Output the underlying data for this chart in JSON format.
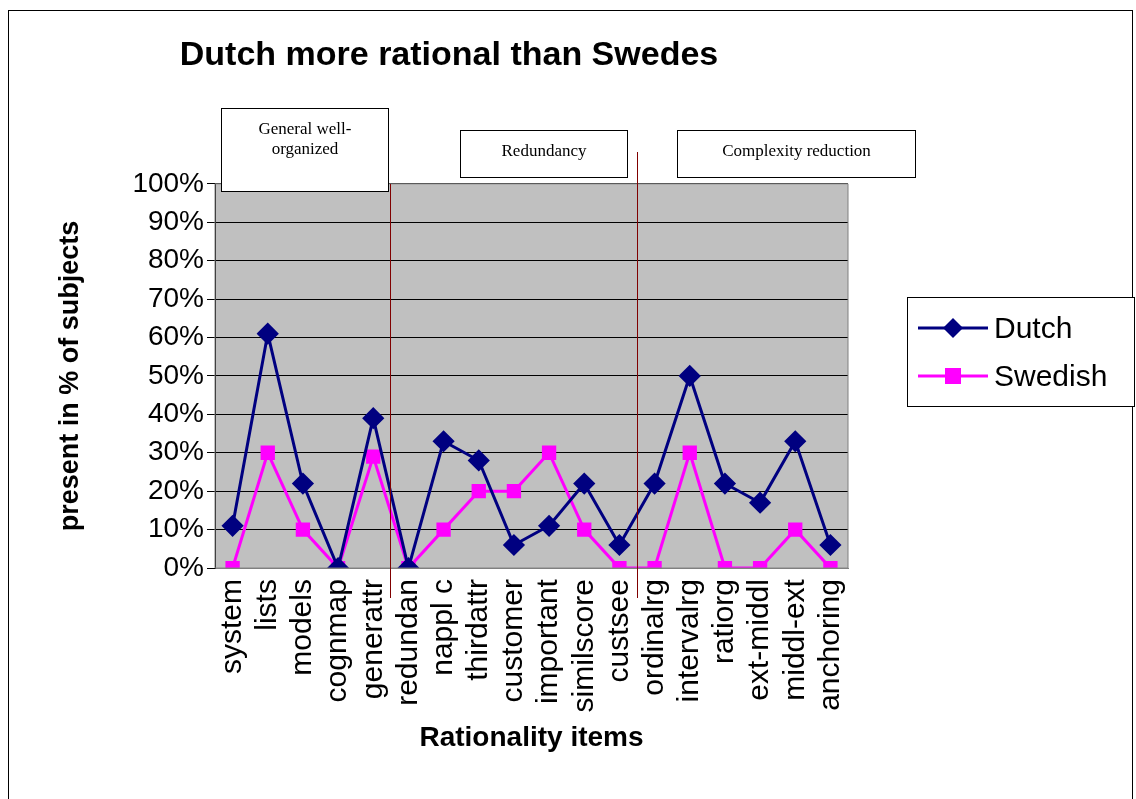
{
  "chart_data": {
    "type": "line",
    "title": "Dutch more rational than Swedes",
    "xlabel": "Rationality items",
    "ylabel": "present in % of subjects",
    "categories": [
      "system",
      "lists",
      "models",
      "cognmap",
      "generattr",
      "redundan",
      "nappl c",
      "thirdattr",
      "customer",
      "important",
      "similscore",
      "custsee",
      "ordinalrg",
      "intervalrg",
      "ratiorg",
      "ext-middl",
      "middl-ext",
      "anchoring"
    ],
    "series": [
      {
        "name": "Dutch",
        "color": "#000080",
        "marker": "diamond",
        "values": [
          11,
          61,
          22,
          0,
          39,
          0,
          33,
          28,
          6,
          11,
          22,
          6,
          22,
          50,
          22,
          17,
          33,
          6
        ]
      },
      {
        "name": "Swedish",
        "color": "#ff00ff",
        "marker": "square",
        "values": [
          0,
          30,
          10,
          0,
          29,
          0,
          10,
          20,
          20,
          30,
          10,
          0,
          0,
          30,
          0,
          0,
          10,
          0
        ]
      }
    ],
    "ylim": [
      0,
      100
    ],
    "yticks": [
      {
        "value": 0,
        "label": "0%"
      },
      {
        "value": 10,
        "label": "10%"
      },
      {
        "value": 20,
        "label": "20%"
      },
      {
        "value": 30,
        "label": "30%"
      },
      {
        "value": 40,
        "label": "40%"
      },
      {
        "value": 50,
        "label": "50%"
      },
      {
        "value": 60,
        "label": "60%"
      },
      {
        "value": 70,
        "label": "70%"
      },
      {
        "value": 80,
        "label": "80%"
      },
      {
        "value": 90,
        "label": "90%"
      },
      {
        "value": 100,
        "label": "100%"
      }
    ],
    "annotations": [
      "General well-organized",
      "Redundancy",
      "Complexity reduction"
    ],
    "grid": "y",
    "legend": "right",
    "line_style": "solid"
  }
}
